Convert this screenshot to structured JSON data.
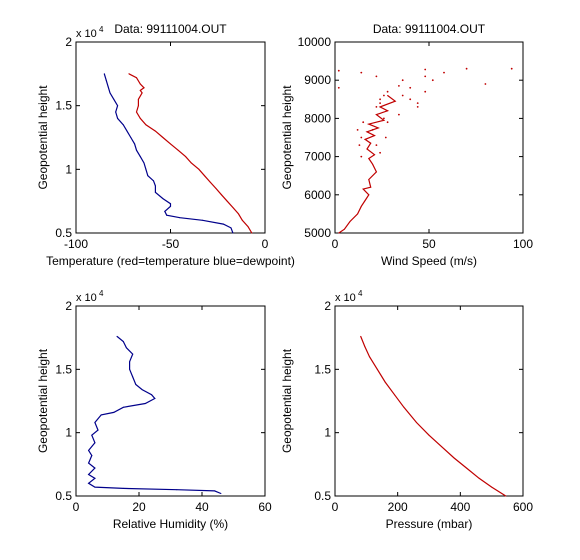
{
  "chart_data": [
    {
      "type": "line",
      "title": "Data: 99111004.OUT",
      "xlabel": "Temperature (red=temperature blue=dewpoint)",
      "ylabel": "Geopotential height",
      "y_multiplier_label": "x 10",
      "y_multiplier_exp": "4",
      "xlim": [
        -100,
        0
      ],
      "ylim": [
        0.5,
        2
      ],
      "xticks": [
        "-100",
        "-50",
        "0"
      ],
      "yticks": [
        "0.5",
        "1",
        "1.5",
        "2"
      ],
      "series": [
        {
          "color": "#c00000",
          "style": "line",
          "points": [
            [
              -7,
              0.5
            ],
            [
              -9,
              0.55
            ],
            [
              -12,
              0.6
            ],
            [
              -14,
              0.65
            ],
            [
              -17,
              0.7
            ],
            [
              -20,
              0.75
            ],
            [
              -23,
              0.8
            ],
            [
              -26,
              0.85
            ],
            [
              -29,
              0.9
            ],
            [
              -32,
              0.95
            ],
            [
              -35,
              1.0
            ],
            [
              -39,
              1.05
            ],
            [
              -42,
              1.1
            ],
            [
              -46,
              1.15
            ],
            [
              -50,
              1.2
            ],
            [
              -54,
              1.25
            ],
            [
              -58,
              1.3
            ],
            [
              -63,
              1.35
            ],
            [
              -66,
              1.4
            ],
            [
              -68,
              1.45
            ],
            [
              -67,
              1.5
            ],
            [
              -67,
              1.55
            ],
            [
              -65,
              1.6
            ],
            [
              -66,
              1.62
            ],
            [
              -64,
              1.64
            ],
            [
              -66,
              1.67
            ],
            [
              -68,
              1.72
            ],
            [
              -72,
              1.75
            ]
          ]
        },
        {
          "color": "#00008b",
          "style": "line",
          "points": [
            [
              -17,
              0.5
            ],
            [
              -18,
              0.54
            ],
            [
              -22,
              0.57
            ],
            [
              -33,
              0.6
            ],
            [
              -45,
              0.62
            ],
            [
              -52,
              0.64
            ],
            [
              -53,
              0.67
            ],
            [
              -50,
              0.71
            ],
            [
              -50,
              0.73
            ],
            [
              -54,
              0.77
            ],
            [
              -58,
              0.82
            ],
            [
              -58,
              0.87
            ],
            [
              -59,
              0.91
            ],
            [
              -62,
              0.95
            ],
            [
              -63,
              1.0
            ],
            [
              -64,
              1.05
            ],
            [
              -66,
              1.1
            ],
            [
              -68,
              1.15
            ],
            [
              -69,
              1.2
            ],
            [
              -71,
              1.25
            ],
            [
              -73,
              1.3
            ],
            [
              -75,
              1.35
            ],
            [
              -78,
              1.4
            ],
            [
              -79,
              1.45
            ],
            [
              -78,
              1.5
            ],
            [
              -80,
              1.55
            ],
            [
              -82,
              1.6
            ],
            [
              -83,
              1.65
            ],
            [
              -84,
              1.7
            ],
            [
              -85,
              1.75
            ]
          ]
        }
      ]
    },
    {
      "type": "scatter",
      "title": "Data: 99111004.OUT",
      "xlabel": "Wind Speed (m/s)",
      "ylabel": "Geopotential height",
      "xlim": [
        0,
        100
      ],
      "ylim": [
        5000,
        10000
      ],
      "xticks": [
        "0",
        "50",
        "100"
      ],
      "yticks": [
        "5000",
        "6000",
        "7000",
        "8000",
        "9000",
        "10000"
      ],
      "series": [
        {
          "color": "#c00000",
          "style": "line",
          "points": [
            [
              2,
              5000
            ],
            [
              5,
              5100
            ],
            [
              8,
              5300
            ],
            [
              12,
              5500
            ],
            [
              14,
              5700
            ],
            [
              16,
              5850
            ],
            [
              18,
              6000
            ],
            [
              15,
              6150
            ],
            [
              19,
              6200
            ],
            [
              18,
              6400
            ],
            [
              22,
              6600
            ],
            [
              20,
              6800
            ],
            [
              18,
              6950
            ],
            [
              21,
              7050
            ],
            [
              17,
              7200
            ],
            [
              19,
              7350
            ],
            [
              16,
              7450
            ],
            [
              21,
              7550
            ],
            [
              17,
              7650
            ],
            [
              23,
              7750
            ],
            [
              18,
              7850
            ],
            [
              26,
              7950
            ],
            [
              22,
              8100
            ],
            [
              28,
              8200
            ],
            [
              24,
              8300
            ],
            [
              32,
              8450
            ],
            [
              28,
              8600
            ]
          ]
        },
        {
          "color": "#c00000",
          "style": "dots",
          "points": [
            [
              14,
              7000
            ],
            [
              24,
              7100
            ],
            [
              13,
              7300
            ],
            [
              22,
              7300
            ],
            [
              14,
              7500
            ],
            [
              27,
              7500
            ],
            [
              12,
              7700
            ],
            [
              20,
              7700
            ],
            [
              15,
              7900
            ],
            [
              28,
              7900
            ],
            [
              26,
              8000
            ],
            [
              34,
              8100
            ],
            [
              22,
              8300
            ],
            [
              44,
              8300
            ],
            [
              24,
              8400
            ],
            [
              44,
              8400
            ],
            [
              24,
              8500
            ],
            [
              40,
              8500
            ],
            [
              26,
              8600
            ],
            [
              36,
              8600
            ],
            [
              28,
              8700
            ],
            [
              48,
              8700
            ],
            [
              2,
              8800
            ],
            [
              40,
              8800
            ],
            [
              34,
              8850
            ],
            [
              80,
              8900
            ],
            [
              36,
              9000
            ],
            [
              52,
              9000
            ],
            [
              22,
              9100
            ],
            [
              48,
              9100
            ],
            [
              14,
              9200
            ],
            [
              58,
              9200
            ],
            [
              2,
              9250
            ],
            [
              48,
              9280
            ],
            [
              70,
              9300
            ],
            [
              94,
              9300
            ]
          ]
        }
      ]
    },
    {
      "type": "line",
      "title": "",
      "xlabel": "Relative Humidity (%)",
      "ylabel": "Geopotential height",
      "y_multiplier_label": "x 10",
      "y_multiplier_exp": "4",
      "xlim": [
        0,
        60
      ],
      "ylim": [
        0.5,
        2
      ],
      "xticks": [
        "0",
        "20",
        "40",
        "60"
      ],
      "yticks": [
        "0.5",
        "1",
        "1.5",
        "2"
      ],
      "series": [
        {
          "color": "#00008b",
          "style": "line",
          "points": [
            [
              46,
              0.52
            ],
            [
              44,
              0.54
            ],
            [
              32,
              0.55
            ],
            [
              15,
              0.56
            ],
            [
              6,
              0.57
            ],
            [
              4,
              0.6
            ],
            [
              6,
              0.64
            ],
            [
              4,
              0.67
            ],
            [
              6,
              0.72
            ],
            [
              4,
              0.76
            ],
            [
              5,
              0.82
            ],
            [
              4,
              0.86
            ],
            [
              6,
              0.92
            ],
            [
              5,
              0.98
            ],
            [
              7,
              1.02
            ],
            [
              6,
              1.08
            ],
            [
              8,
              1.14
            ],
            [
              12,
              1.16
            ],
            [
              15,
              1.2
            ],
            [
              22,
              1.23
            ],
            [
              25,
              1.27
            ],
            [
              24,
              1.3
            ],
            [
              21,
              1.34
            ],
            [
              19,
              1.38
            ],
            [
              18,
              1.44
            ],
            [
              17,
              1.5
            ],
            [
              17,
              1.56
            ],
            [
              18,
              1.62
            ],
            [
              16,
              1.67
            ],
            [
              15,
              1.72
            ],
            [
              13,
              1.76
            ]
          ]
        }
      ]
    },
    {
      "type": "line",
      "title": "",
      "xlabel": "Pressure (mbar)",
      "ylabel": "Geopotential height",
      "y_multiplier_label": "x 10",
      "y_multiplier_exp": "4",
      "xlim": [
        0,
        600
      ],
      "ylim": [
        0.5,
        2
      ],
      "xticks": [
        "0",
        "200",
        "400",
        "600"
      ],
      "yticks": [
        "0.5",
        "1",
        "1.5",
        "2"
      ],
      "series": [
        {
          "color": "#c00000",
          "style": "line",
          "points": [
            [
              545,
              0.5
            ],
            [
              500,
              0.57
            ],
            [
              460,
              0.64
            ],
            [
              420,
              0.72
            ],
            [
              380,
              0.8
            ],
            [
              340,
              0.89
            ],
            [
              300,
              0.98
            ],
            [
              260,
              1.08
            ],
            [
              220,
              1.2
            ],
            [
              190,
              1.3
            ],
            [
              160,
              1.4
            ],
            [
              135,
              1.5
            ],
            [
              110,
              1.6
            ],
            [
              95,
              1.68
            ],
            [
              82,
              1.76
            ]
          ]
        }
      ]
    }
  ]
}
